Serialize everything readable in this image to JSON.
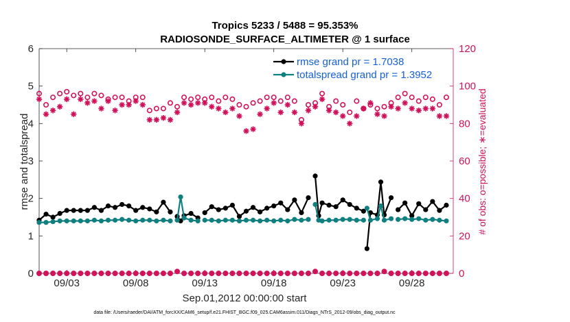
{
  "chart_data": {
    "type": "line",
    "title": "Tropics 5233 / 5488 = 95.353%",
    "subtitle": "RADIOSONDE_SURFACE_ALTIMETER @ 1 surface",
    "xlabel": "Sep.01,2012 00:00:00 start",
    "ylabel_left": "rmse and totalspread",
    "ylabel_right": "# of obs: o=possible; ∗=evaluated",
    "footer": "data file: /Users/raeder/DAI/ATM_forcXX/CAM6_setup/f.e21.FHIST_BGC.f09_025.CAM6assim.011/Diags_NTrS_2012-09/obs_diag_output.nc",
    "xlim": [
      1,
      31
    ],
    "ylim_left": [
      0,
      6
    ],
    "ylim_right": [
      0,
      120
    ],
    "xticks": [
      3,
      8,
      13,
      18,
      23,
      28
    ],
    "xtick_labels": [
      "09/03",
      "09/08",
      "09/13",
      "09/18",
      "09/23",
      "09/28"
    ],
    "yticks_left": [
      "0",
      "1",
      "2",
      "3",
      "4",
      "5",
      "6"
    ],
    "yticks_right": [
      "0",
      "20",
      "40",
      "60",
      "80",
      "100",
      "120"
    ],
    "x": [
      1.0,
      1.5,
      2.0,
      2.5,
      3.0,
      3.5,
      4.0,
      4.5,
      5.0,
      5.5,
      6.0,
      6.5,
      7.0,
      7.5,
      8.0,
      8.5,
      9.0,
      9.5,
      10.0,
      10.5,
      11.0,
      11.25,
      11.5,
      12.0,
      12.5,
      13.0,
      13.5,
      14.0,
      14.5,
      15.0,
      15.5,
      16.0,
      16.5,
      17.0,
      17.5,
      18.0,
      18.5,
      19.0,
      19.5,
      20.0,
      20.5,
      21.0,
      21.25,
      21.5,
      22.0,
      22.5,
      23.0,
      23.5,
      24.0,
      24.5,
      24.75,
      25.0,
      25.5,
      25.75,
      26.0,
      26.5,
      27.0,
      27.5,
      28.0,
      28.5,
      29.0,
      29.5,
      30.0,
      30.5
    ],
    "series": [
      {
        "name": "rmse grand pr = 1.7038",
        "color": "#000000",
        "values": [
          1.42,
          1.58,
          1.5,
          1.6,
          1.68,
          1.68,
          1.68,
          1.68,
          1.76,
          1.68,
          1.8,
          1.76,
          1.84,
          1.8,
          1.68,
          1.76,
          1.72,
          1.64,
          1.9,
          1.64,
          1.52,
          1.4,
          1.54,
          1.6,
          1.48,
          1.62,
          1.78,
          1.7,
          1.74,
          1.82,
          1.52,
          1.66,
          1.76,
          1.64,
          1.74,
          1.8,
          1.88,
          1.7,
          1.96,
          1.62,
          2.02,
          2.6,
          1.54,
          1.88,
          1.82,
          1.78,
          1.96,
          1.84,
          1.74,
          1.66,
          0.66,
          1.62,
          1.56,
          2.44,
          1.56,
          2.02,
          1.7,
          1.88,
          1.54,
          1.86,
          1.7,
          1.92,
          1.68,
          1.82
        ],
        "gaps_after_index": [
          19,
          24,
          40,
          49,
          55
        ]
      },
      {
        "name": "totalspread grand pr = 1.3952",
        "color": "#0f7f80",
        "values": [
          1.36,
          1.36,
          1.38,
          1.4,
          1.4,
          1.4,
          1.4,
          1.4,
          1.42,
          1.4,
          1.42,
          1.42,
          1.44,
          1.42,
          1.4,
          1.42,
          1.42,
          1.4,
          1.42,
          1.4,
          1.42,
          2.04,
          1.48,
          1.42,
          1.4,
          1.42,
          1.42,
          1.4,
          1.42,
          1.42,
          1.4,
          1.42,
          1.42,
          1.4,
          1.42,
          1.4,
          1.42,
          1.4,
          1.44,
          1.42,
          1.44,
          1.84,
          1.42,
          1.4,
          1.42,
          1.42,
          1.44,
          1.44,
          1.42,
          1.42,
          1.74,
          1.42,
          1.46,
          1.8,
          1.42,
          1.46,
          1.44,
          1.46,
          1.44,
          1.46,
          1.42,
          1.44,
          1.42,
          1.4
        ],
        "gaps_after_index": [
          19,
          24,
          40,
          49,
          55
        ]
      },
      {
        "name": "obs possible",
        "marker": "o",
        "color": "#d0105a",
        "axis": "right",
        "x": [
          1.0,
          1.5,
          2.0,
          2.5,
          3.0,
          3.5,
          4.0,
          4.5,
          5.0,
          5.5,
          6.0,
          6.5,
          7.0,
          7.5,
          8.0,
          8.5,
          9.0,
          9.5,
          10.0,
          10.5,
          11.0,
          11.5,
          12.0,
          12.5,
          13.0,
          13.5,
          14.0,
          14.5,
          15.0,
          15.5,
          16.0,
          16.5,
          17.0,
          17.5,
          18.0,
          18.5,
          19.0,
          19.5,
          20.0,
          20.5,
          21.0,
          21.5,
          22.0,
          22.5,
          23.0,
          23.5,
          24.0,
          24.5,
          25.0,
          25.5,
          26.0,
          26.5,
          27.0,
          27.5,
          28.0,
          28.5,
          29.0,
          29.5,
          30.0,
          30.5
        ],
        "values": [
          96,
          90,
          94,
          96,
          97,
          95,
          96,
          94,
          96,
          95,
          93,
          94,
          94,
          92,
          94,
          94,
          87,
          88,
          88,
          91,
          89,
          94,
          93,
          94,
          93,
          94,
          92,
          94,
          93,
          90,
          89,
          91,
          92,
          94,
          94,
          92,
          94,
          92,
          82,
          90,
          91,
          96,
          89,
          92,
          90,
          86,
          92,
          88,
          90,
          88,
          89,
          91,
          94,
          96,
          94,
          92,
          94,
          93,
          90,
          94
        ],
        "y_baseline": [
          0,
          0,
          0,
          0,
          0,
          0,
          0,
          0,
          0,
          0,
          0,
          0,
          0,
          0,
          0,
          0,
          0,
          0,
          0,
          0,
          1,
          0,
          0,
          0,
          0,
          0,
          0,
          0,
          0,
          0,
          0,
          0,
          0,
          0,
          0,
          0,
          0,
          0,
          0,
          0,
          1,
          0,
          0,
          0,
          0,
          0,
          0,
          0,
          0,
          0,
          1,
          0,
          0,
          0,
          0,
          0,
          0,
          0,
          0,
          0
        ]
      },
      {
        "name": "obs evaluated",
        "marker": "*",
        "color": "#d0105a",
        "axis": "right",
        "x": [
          1.0,
          1.5,
          2.0,
          2.5,
          3.0,
          3.5,
          4.0,
          4.5,
          5.0,
          5.5,
          6.0,
          6.5,
          7.0,
          7.5,
          8.0,
          8.5,
          9.0,
          9.5,
          10.0,
          10.5,
          11.0,
          11.5,
          12.0,
          12.5,
          13.0,
          13.5,
          14.0,
          14.5,
          15.0,
          15.5,
          16.0,
          16.5,
          17.0,
          17.5,
          18.0,
          18.5,
          19.0,
          19.5,
          20.0,
          20.5,
          21.0,
          21.5,
          22.0,
          22.5,
          23.0,
          23.5,
          24.0,
          24.5,
          25.0,
          25.5,
          26.0,
          26.5,
          27.0,
          27.5,
          28.0,
          28.5,
          29.0,
          29.5,
          30.0,
          30.5
        ],
        "values": [
          93,
          85,
          87,
          89,
          93,
          85,
          93,
          91,
          92,
          88,
          92,
          87,
          90,
          90,
          92,
          90,
          82,
          82,
          83,
          82,
          86,
          91,
          90,
          91,
          91,
          89,
          88,
          86,
          88,
          84,
          76,
          77,
          85,
          88,
          91,
          86,
          90,
          86,
          80,
          87,
          89,
          93,
          87,
          86,
          84,
          80,
          84,
          88,
          91,
          85,
          84,
          89,
          88,
          91,
          88,
          87,
          88,
          88,
          84,
          84
        ],
        "y_baseline": [
          0,
          0,
          0,
          0,
          0,
          0,
          0,
          0,
          0,
          0,
          0,
          0,
          0,
          0,
          0,
          0,
          0,
          0,
          0,
          0,
          1,
          0,
          0,
          0,
          0,
          0,
          0,
          0,
          0,
          0,
          0,
          0,
          0,
          0,
          0,
          0,
          0,
          0,
          0,
          0,
          1,
          0,
          0,
          0,
          0,
          0,
          0,
          0,
          0,
          0,
          1,
          0,
          0,
          0,
          0,
          0,
          0,
          0,
          0,
          0
        ]
      }
    ],
    "legend": {
      "placement": "top-right",
      "entries": [
        "rmse grand pr = 1.7038",
        "totalspread grand pr = 1.3952"
      ]
    }
  }
}
